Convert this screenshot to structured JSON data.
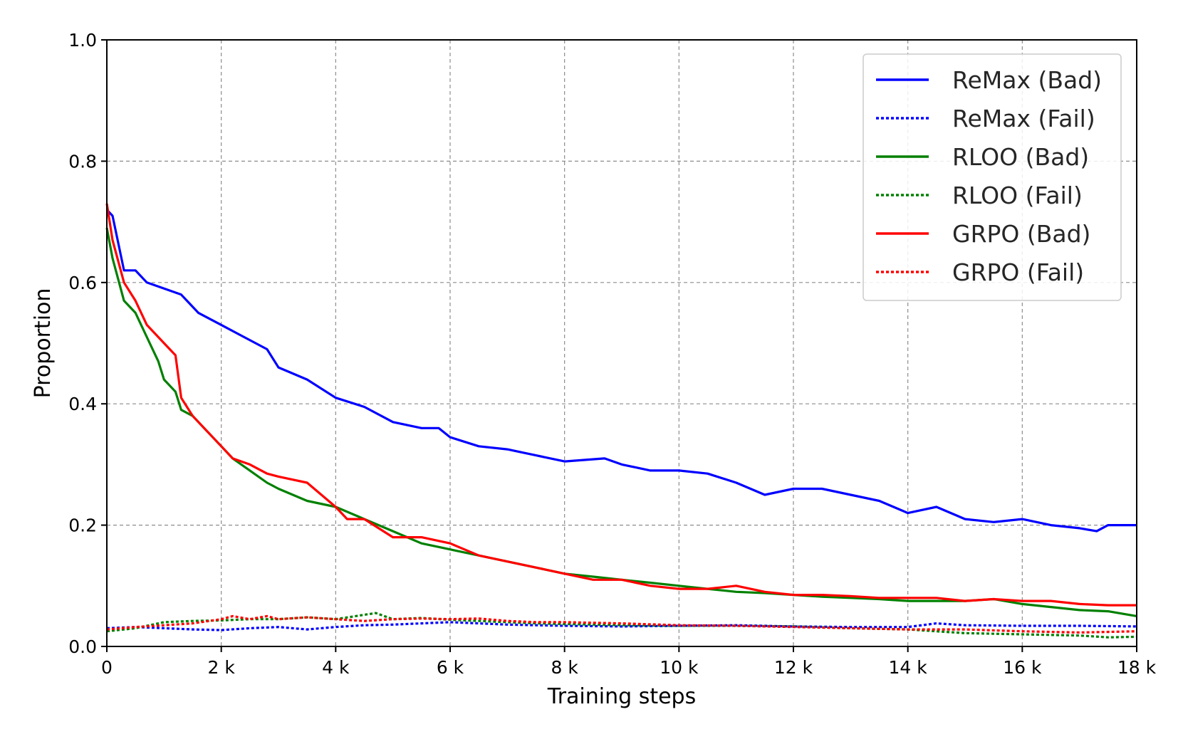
{
  "chart_data": {
    "type": "line",
    "title": "",
    "xlabel": "Training steps",
    "ylabel": "Proportion",
    "xlim": [
      0,
      18000
    ],
    "ylim": [
      0,
      1.0
    ],
    "grid": true,
    "legend_position": "top-right",
    "x_ticks": [
      0,
      2000,
      4000,
      6000,
      8000,
      10000,
      12000,
      14000,
      16000,
      18000
    ],
    "x_tick_labels": [
      "0",
      "2 k",
      "4 k",
      "6 k",
      "8 k",
      "10 k",
      "12 k",
      "14 k",
      "16 k",
      "18 k"
    ],
    "y_ticks": [
      0,
      0.2,
      0.4,
      0.6,
      0.8,
      1.0
    ],
    "y_tick_labels": [
      "0.0",
      "0.2",
      "0.4",
      "0.6",
      "0.8",
      "1.0"
    ],
    "series": [
      {
        "name": "ReMax (Bad)",
        "color": "#0000ff",
        "style": "solid",
        "x": [
          0,
          100,
          300,
          500,
          700,
          1000,
          1300,
          1600,
          2000,
          2400,
          2800,
          3000,
          3500,
          4000,
          4500,
          5000,
          5500,
          5800,
          6000,
          6500,
          7000,
          7500,
          8000,
          8700,
          9000,
          9500,
          10000,
          10500,
          11000,
          11500,
          12000,
          12500,
          13000,
          13500,
          14000,
          14500,
          15000,
          15500,
          16000,
          16500,
          17000,
          17300,
          17500,
          18000
        ],
        "y": [
          0.72,
          0.71,
          0.62,
          0.62,
          0.6,
          0.59,
          0.58,
          0.55,
          0.53,
          0.51,
          0.49,
          0.46,
          0.44,
          0.41,
          0.395,
          0.37,
          0.36,
          0.36,
          0.345,
          0.33,
          0.325,
          0.315,
          0.305,
          0.31,
          0.3,
          0.29,
          0.29,
          0.285,
          0.27,
          0.25,
          0.26,
          0.26,
          0.25,
          0.24,
          0.22,
          0.23,
          0.21,
          0.205,
          0.21,
          0.2,
          0.195,
          0.19,
          0.2,
          0.2
        ]
      },
      {
        "name": "ReMax (Fail)",
        "color": "#0000ff",
        "style": "dashed",
        "x": [
          0,
          500,
          1000,
          1500,
          2000,
          2500,
          3000,
          3500,
          4000,
          4500,
          5000,
          5500,
          6000,
          6500,
          7000,
          7500,
          8000,
          9000,
          10000,
          11000,
          12000,
          13000,
          14000,
          14500,
          15000,
          16000,
          17000,
          18000
        ],
        "y": [
          0.03,
          0.032,
          0.03,
          0.028,
          0.027,
          0.03,
          0.032,
          0.028,
          0.032,
          0.035,
          0.036,
          0.038,
          0.04,
          0.038,
          0.036,
          0.035,
          0.034,
          0.033,
          0.034,
          0.035,
          0.033,
          0.032,
          0.032,
          0.038,
          0.035,
          0.034,
          0.034,
          0.033
        ]
      },
      {
        "name": "RLOO (Bad)",
        "color": "#008000",
        "style": "solid",
        "x": [
          0,
          100,
          300,
          500,
          700,
          900,
          1000,
          1200,
          1300,
          1500,
          1700,
          2000,
          2200,
          2500,
          2800,
          3000,
          3500,
          4000,
          4500,
          5000,
          5500,
          6000,
          6500,
          7000,
          7500,
          8000,
          8500,
          9000,
          9500,
          10000,
          10500,
          11000,
          11500,
          12000,
          12500,
          13000,
          13500,
          14000,
          14500,
          15000,
          15500,
          16000,
          16500,
          17000,
          17500,
          18000
        ],
        "y": [
          0.69,
          0.64,
          0.57,
          0.55,
          0.51,
          0.47,
          0.44,
          0.42,
          0.39,
          0.38,
          0.36,
          0.33,
          0.31,
          0.29,
          0.27,
          0.26,
          0.24,
          0.23,
          0.21,
          0.19,
          0.17,
          0.16,
          0.15,
          0.14,
          0.13,
          0.12,
          0.115,
          0.11,
          0.105,
          0.1,
          0.095,
          0.09,
          0.088,
          0.085,
          0.082,
          0.08,
          0.078,
          0.075,
          0.075,
          0.075,
          0.078,
          0.07,
          0.065,
          0.06,
          0.058,
          0.05
        ]
      },
      {
        "name": "RLOO (Fail)",
        "color": "#008000",
        "style": "dashed",
        "x": [
          0,
          500,
          1000,
          1500,
          2000,
          2500,
          3000,
          3500,
          4000,
          4700,
          5000,
          5500,
          6000,
          6500,
          7000,
          7500,
          8000,
          9000,
          10000,
          11000,
          12000,
          13000,
          14000,
          15000,
          16000,
          17000,
          17500,
          18000
        ],
        "y": [
          0.025,
          0.03,
          0.04,
          0.042,
          0.043,
          0.045,
          0.045,
          0.048,
          0.045,
          0.055,
          0.045,
          0.047,
          0.044,
          0.042,
          0.04,
          0.038,
          0.037,
          0.035,
          0.034,
          0.034,
          0.033,
          0.03,
          0.028,
          0.022,
          0.02,
          0.018,
          0.015,
          0.016
        ]
      },
      {
        "name": "GRPO (Bad)",
        "color": "#ff0000",
        "style": "solid",
        "x": [
          0,
          100,
          300,
          500,
          700,
          900,
          1000,
          1200,
          1300,
          1500,
          1700,
          2000,
          2200,
          2500,
          2800,
          3000,
          3500,
          4000,
          4200,
          4500,
          5000,
          5500,
          6000,
          6500,
          7000,
          7500,
          8000,
          8500,
          9000,
          9500,
          10000,
          10500,
          11000,
          11500,
          12000,
          12500,
          13000,
          13500,
          14000,
          14500,
          15000,
          15500,
          16000,
          16500,
          17000,
          17500,
          18000
        ],
        "y": [
          0.73,
          0.67,
          0.6,
          0.57,
          0.53,
          0.51,
          0.5,
          0.48,
          0.41,
          0.38,
          0.36,
          0.33,
          0.31,
          0.3,
          0.285,
          0.28,
          0.27,
          0.23,
          0.21,
          0.21,
          0.18,
          0.18,
          0.17,
          0.15,
          0.14,
          0.13,
          0.12,
          0.11,
          0.11,
          0.1,
          0.095,
          0.095,
          0.1,
          0.09,
          0.085,
          0.085,
          0.083,
          0.08,
          0.08,
          0.08,
          0.075,
          0.078,
          0.075,
          0.075,
          0.07,
          0.068,
          0.068
        ]
      },
      {
        "name": "GRPO (Fail)",
        "color": "#ff0000",
        "style": "dashed",
        "x": [
          0,
          500,
          1000,
          1500,
          2000,
          2200,
          2500,
          2800,
          3000,
          3500,
          4000,
          4500,
          5000,
          5500,
          6000,
          6500,
          7000,
          7500,
          8000,
          9000,
          10000,
          11000,
          12000,
          13000,
          14000,
          15000,
          16000,
          17000,
          18000
        ],
        "y": [
          0.028,
          0.032,
          0.035,
          0.038,
          0.045,
          0.05,
          0.045,
          0.05,
          0.045,
          0.048,
          0.045,
          0.042,
          0.045,
          0.046,
          0.045,
          0.046,
          0.042,
          0.04,
          0.04,
          0.038,
          0.035,
          0.034,
          0.032,
          0.03,
          0.028,
          0.028,
          0.025,
          0.023,
          0.025
        ]
      }
    ]
  }
}
